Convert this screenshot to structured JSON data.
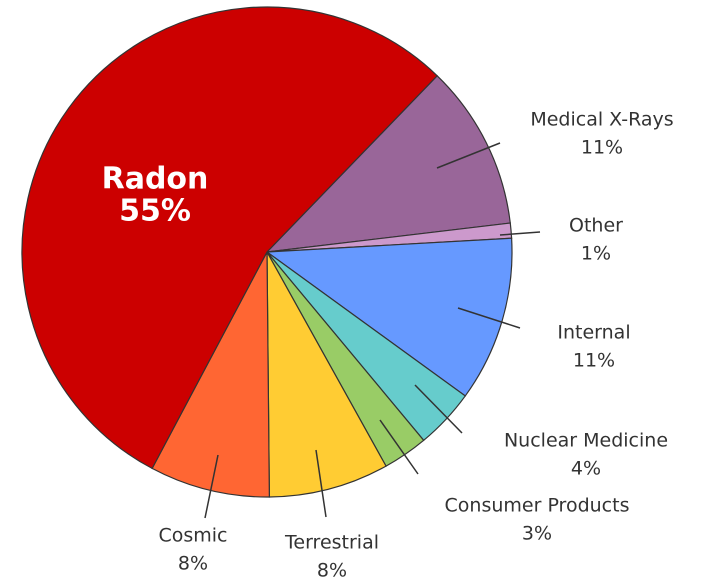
{
  "chart_data": {
    "type": "pie",
    "labels": [
      "Medical X-Rays",
      "Other",
      "Internal",
      "Nuclear Medicine",
      "Consumer Products",
      "Terrestrial",
      "Cosmic",
      "Radon"
    ],
    "values": [
      11,
      1,
      11,
      4,
      3,
      8,
      8,
      55
    ],
    "value_labels": [
      "11%",
      "1%",
      "11%",
      "4%",
      "3%",
      "8%",
      "8%",
      "55%"
    ],
    "colors": [
      "#996699",
      "#cc99cc",
      "#6699ff",
      "#66cccc",
      "#99cc66",
      "#ffcc33",
      "#ff6633",
      "#cc0000"
    ]
  }
}
